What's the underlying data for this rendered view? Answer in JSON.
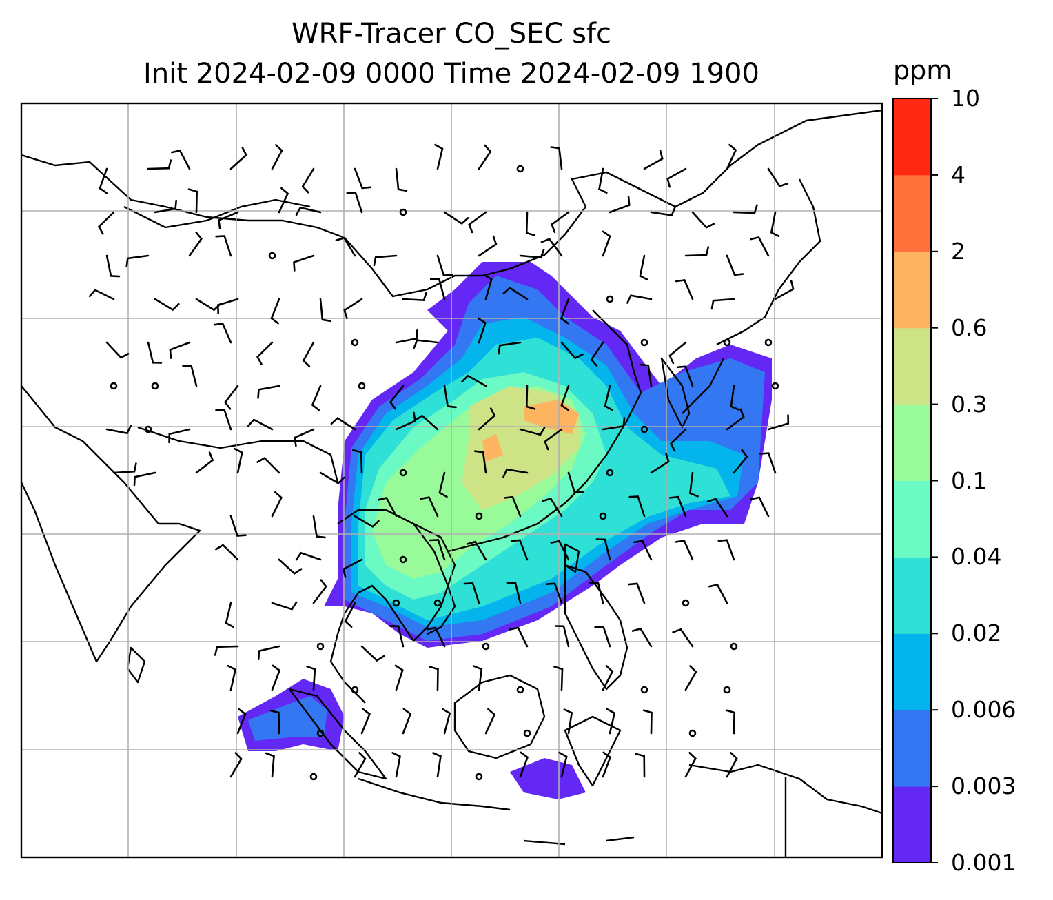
{
  "title": {
    "line1": "WRF-Tracer CO_SEC sfc",
    "line2": "Init 2024-02-09 0000 Time 2024-02-09 1900"
  },
  "colorbar": {
    "unit": "ppm",
    "levels": [
      "0.001",
      "0.003",
      "0.006",
      "0.02",
      "0.04",
      "0.1",
      "0.3",
      "0.6",
      "2",
      "4",
      "10"
    ],
    "colors": [
      "#6428f5",
      "#3378f2",
      "#04b4ec",
      "#2fe0d6",
      "#6cfac4",
      "#98fa98",
      "#cee286",
      "#fdb461",
      "#ff713a",
      "#ff2812"
    ]
  },
  "map": {
    "gridlines": true,
    "gridline_color": "#b0b0b0",
    "coastline_color": "#000000",
    "field": "CO_SEC surface concentration",
    "wind_barbs": true
  }
}
